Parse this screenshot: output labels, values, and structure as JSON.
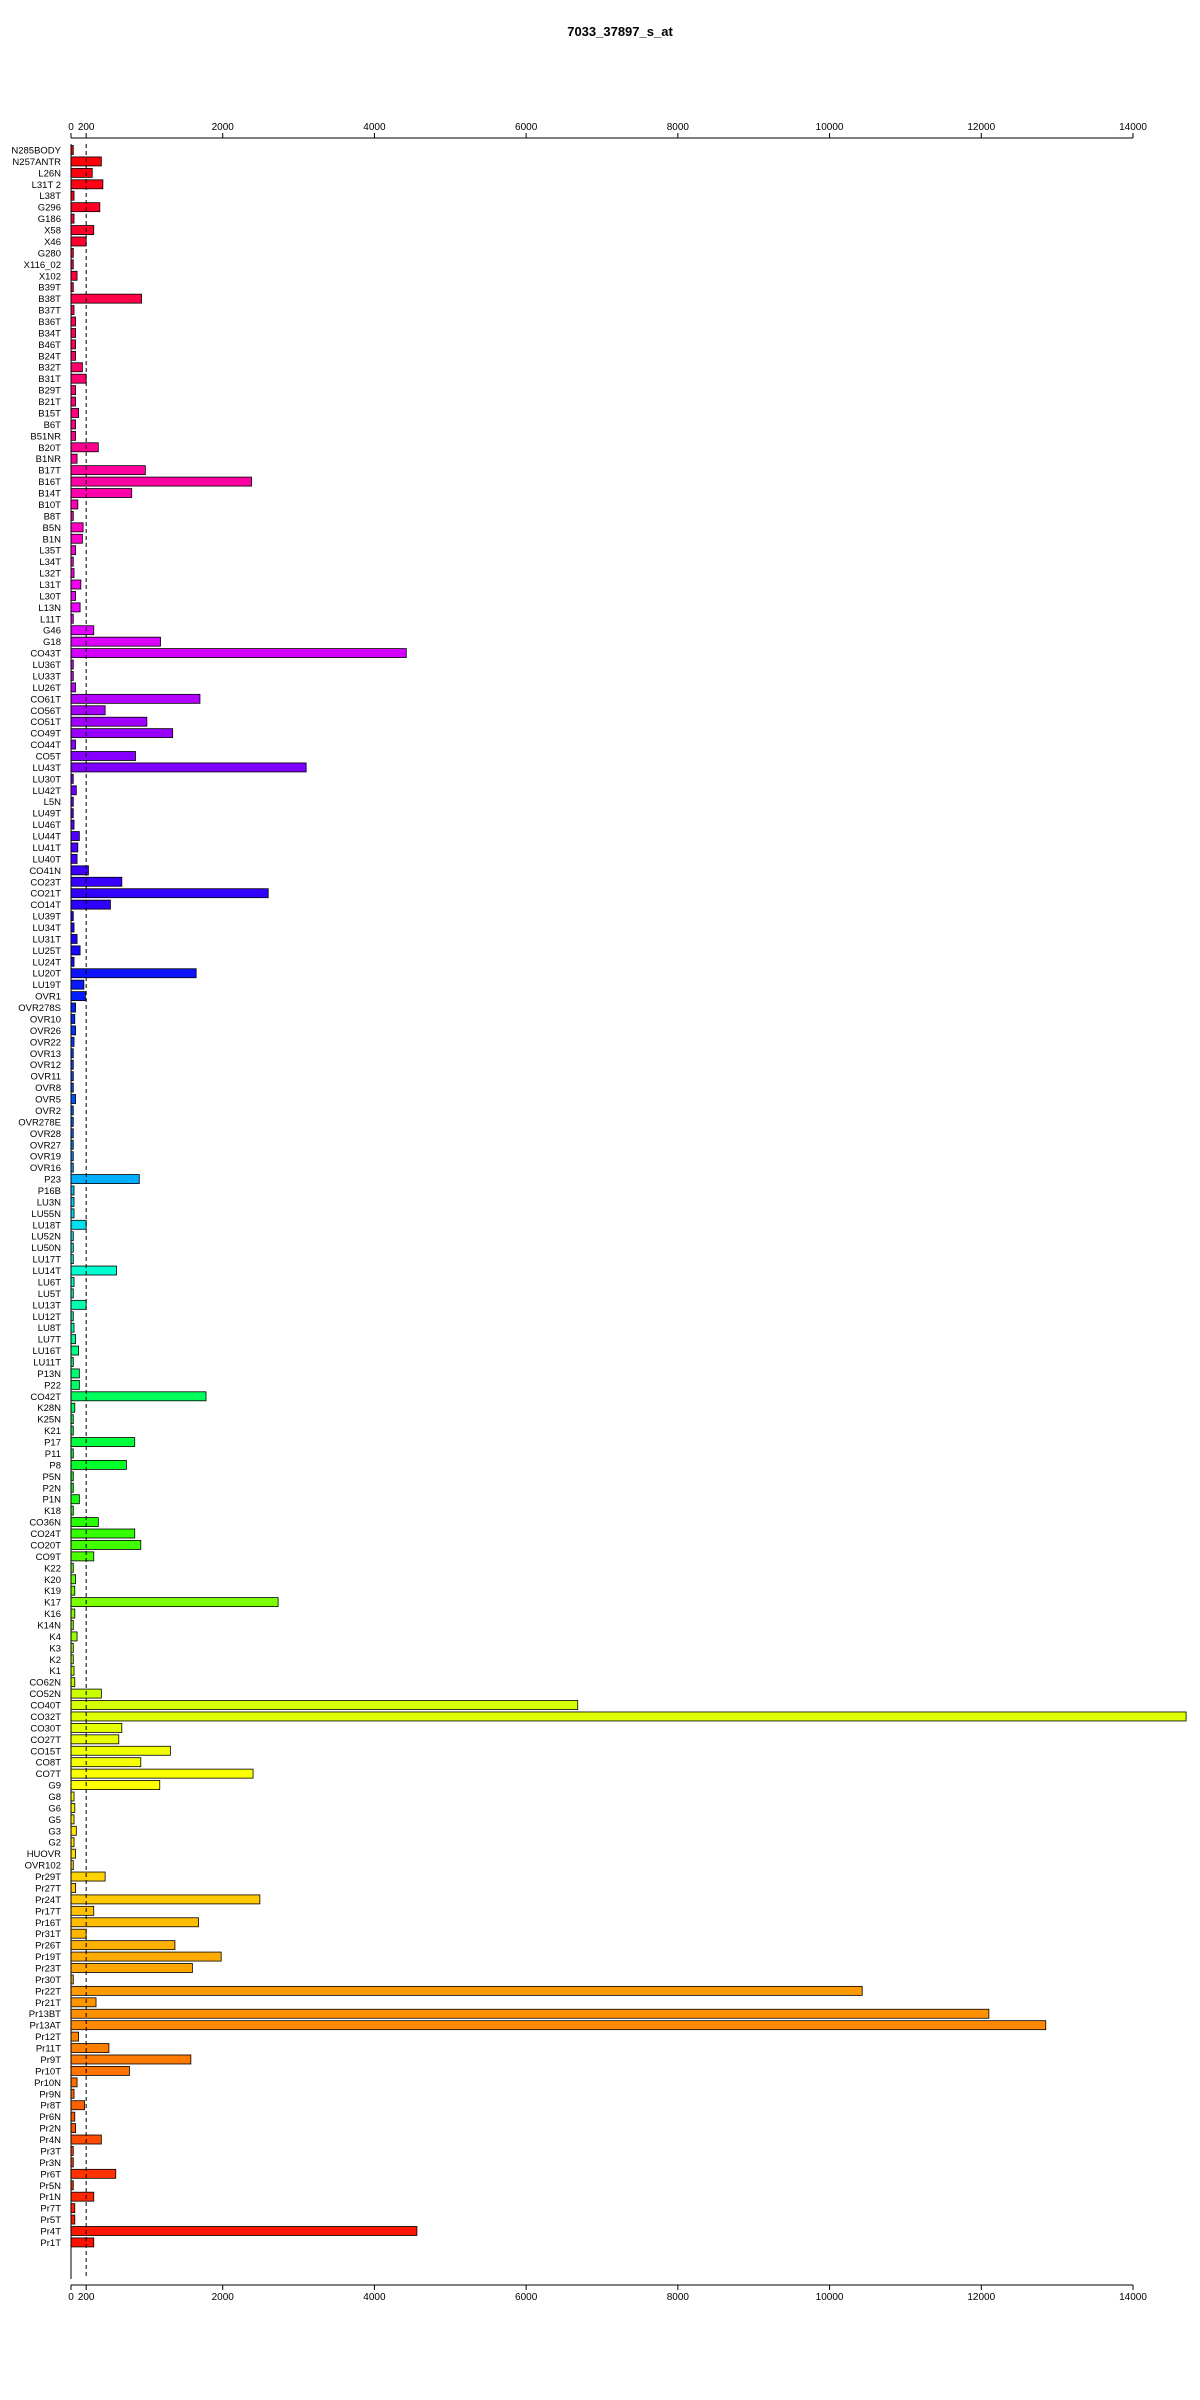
{
  "chart_data": {
    "type": "bar",
    "orientation": "horizontal",
    "title": "7033_37897_s_at",
    "xlabel": "",
    "ylabel": "",
    "xlim": [
      0,
      14000
    ],
    "x_ticks": [
      0,
      200,
      2000,
      4000,
      6000,
      8000,
      10000,
      12000,
      14000
    ],
    "x_tick_labels": [
      "0",
      "200",
      "2000",
      "4000",
      "6000",
      "8000",
      "10000",
      "12000",
      "14000"
    ],
    "reference_lines": [
      0,
      200
    ],
    "grid": false,
    "legend": "none",
    "categories": [
      "N285BODY",
      "N257ANTR",
      "L26N",
      "L31T 2",
      "L38T",
      "G296",
      "G186",
      "X58",
      "X46",
      "G280",
      "X116_02",
      "X102",
      "B39T",
      "B38T",
      "B37T",
      "B36T",
      "B34T",
      "B46T",
      "B24T",
      "B32T",
      "B31T",
      "B29T",
      "B21T",
      "B15T",
      "B6T",
      "B51NR",
      "B20T",
      "B1NR",
      "B17T",
      "B16T",
      "B14T",
      "B10T",
      "B8T",
      "B5N",
      "B1N",
      "L35T",
      "L34T",
      "L32T",
      "L31T",
      "L30T",
      "L13N",
      "L11T",
      "G46",
      "G18",
      "CO43T",
      "LU36T",
      "LU33T",
      "LU26T",
      "CO61T",
      "CO56T",
      "CO51T",
      "CO49T",
      "CO44T",
      "CO5T",
      "LU43T",
      "LU30T",
      "LU42T",
      "L5N",
      "LU49T",
      "LU46T",
      "LU44T",
      "LU41T",
      "LU40T",
      "CO41N",
      "CO23T",
      "CO21T",
      "CO14T",
      "LU39T",
      "LU34T",
      "LU31T",
      "LU25T",
      "LU24T",
      "LU20T",
      "LU19T",
      "OVR1",
      "OVR278S",
      "OVR10",
      "OVR26",
      "OVR22",
      "OVR13",
      "OVR12",
      "OVR11",
      "OVR8",
      "OVR5",
      "OVR2",
      "OVR278E",
      "OVR28",
      "OVR27",
      "OVR19",
      "OVR16",
      "P23",
      "P16B",
      "LU3N",
      "LU55N",
      "LU18T",
      "LU52N",
      "LU50N",
      "LU17T",
      "LU14T",
      "LU6T",
      "LU5T",
      "LU13T",
      "LU12T",
      "LU8T",
      "LU7T",
      "LU16T",
      "LU11T",
      "P13N",
      "P22",
      "CO42T",
      "K28N",
      "K25N",
      "K21",
      "P17",
      "P11",
      "P8",
      "P5N",
      "P2N",
      "P1N",
      "K18",
      "CO36N",
      "CO24T",
      "CO20T",
      "CO9T",
      "K22",
      "K20",
      "K19",
      "K17",
      "K16",
      "K14N",
      "K4",
      "K3",
      "K2",
      "K1",
      "CO62N",
      "CO52N",
      "CO40T",
      "CO32T",
      "CO30T",
      "CO27T",
      "CO15T",
      "CO8T",
      "CO7T",
      "G9",
      "G8",
      "G6",
      "G5",
      "G3",
      "G2",
      "HUOVR",
      "OVR102",
      "Pr29T",
      "Pr27T",
      "Pr24T",
      "Pr17T",
      "Pr16T",
      "Pr31T",
      "Pr26T",
      "Pr19T",
      "Pr23T",
      "Pr30T",
      "Pr22T",
      "Pr21T",
      "Pr13BT",
      "Pr13AT",
      "Pr12T",
      "Pr11T",
      "Pr9T",
      "Pr10T",
      "Pr10N",
      "Pr9N",
      "Pr8T",
      "Pr6N",
      "Pr2N",
      "Pr4N",
      "Pr3T",
      "Pr3N",
      "Pr6T",
      "Pr5N",
      "Pr1N",
      "Pr7T",
      "Pr5T",
      "Pr4T",
      "Pr1T"
    ],
    "values": [
      30,
      400,
      280,
      420,
      40,
      380,
      40,
      300,
      200,
      30,
      30,
      80,
      30,
      930,
      40,
      60,
      60,
      60,
      60,
      150,
      200,
      60,
      60,
      100,
      60,
      60,
      360,
      80,
      980,
      2380,
      800,
      90,
      30,
      160,
      150,
      60,
      30,
      40,
      130,
      60,
      120,
      30,
      300,
      1180,
      4420,
      30,
      30,
      60,
      1700,
      450,
      1000,
      1340,
      60,
      850,
      3100,
      30,
      70,
      30,
      30,
      40,
      110,
      90,
      80,
      230,
      670,
      2600,
      520,
      30,
      40,
      80,
      120,
      40,
      1650,
      170,
      190,
      60,
      50,
      60,
      40,
      30,
      30,
      30,
      30,
      60,
      30,
      30,
      30,
      30,
      30,
      30,
      900,
      40,
      40,
      40,
      200,
      30,
      30,
      30,
      600,
      40,
      30,
      200,
      30,
      40,
      60,
      100,
      30,
      110,
      110,
      1780,
      50,
      30,
      30,
      840,
      30,
      730,
      30,
      30,
      110,
      30,
      360,
      840,
      920,
      300,
      30,
      60,
      50,
      2730,
      50,
      30,
      80,
      30,
      30,
      40,
      50,
      400,
      6680,
      14700,
      670,
      630,
      1310,
      920,
      2400,
      1170,
      40,
      50,
      40,
      70,
      40,
      60,
      30,
      450,
      60,
      2490,
      300,
      1680,
      200,
      1370,
      1980,
      1600,
      30,
      10430,
      330,
      12100,
      12850,
      100,
      500,
      1580,
      770,
      80,
      40,
      180,
      50,
      60,
      400,
      30,
      30,
      590,
      30,
      300,
      50,
      50,
      4560,
      300
    ],
    "colors": [
      "#ff0000",
      "#ff0028",
      "#ff0040",
      "#ff0060",
      "#ff0080",
      "#ff00a0",
      "#ff00d0",
      "#f000ff",
      "#c800ff",
      "#9400ff",
      "#6400ff",
      "#3c00ff",
      "#2000ff",
      "#0020ff",
      "#0048ff",
      "#0060ff",
      "#00c8ff",
      "#00ffd8",
      "#00ff9c",
      "#00ff60",
      "#00ff30",
      "#28ff00",
      "#70ff00",
      "#a8ff00",
      "#e0ff00",
      "#ffff00",
      "#ffe000",
      "#ffc000",
      "#ffa000",
      "#ff8000",
      "#ff6000",
      "#ff3000",
      "#ff1000"
    ]
  }
}
